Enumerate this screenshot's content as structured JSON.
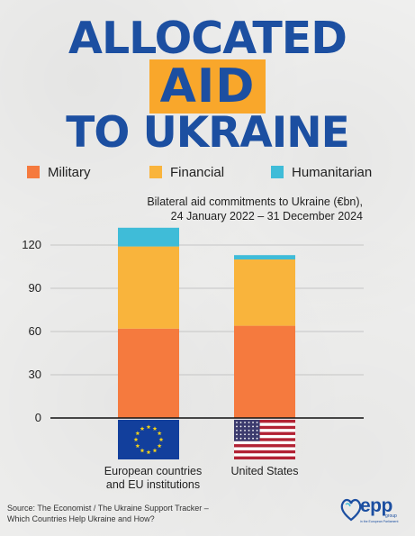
{
  "header": {
    "line1": "ALLOCATED",
    "line2": "AID",
    "line3": "TO UKRAINE"
  },
  "colors": {
    "title_blue": "#1c4fa1",
    "highlight": "#f9a72b",
    "military": "#f57a3e",
    "financial": "#f9b43c",
    "humanitarian": "#3fbcd8"
  },
  "legend": {
    "items": [
      {
        "label": "Military",
        "color": "#f57a3e"
      },
      {
        "label": "Financial",
        "color": "#f9b43c"
      },
      {
        "label": "Humanitarian",
        "color": "#3fbcd8"
      }
    ]
  },
  "subtitle": {
    "line1": "Bilateral aid commitments to Ukraine (€bn),",
    "line2": "24 January 2022 – 31 December 2024"
  },
  "chart_data": {
    "type": "bar",
    "stacked": true,
    "categories": [
      "European countries and EU institutions",
      "United States"
    ],
    "category_lines": [
      [
        "European countries",
        "and EU institutions"
      ],
      [
        "United States"
      ]
    ],
    "category_icons": [
      "eu-flag-icon",
      "us-flag-icon"
    ],
    "series": [
      {
        "name": "Military",
        "values": [
          62,
          64
        ]
      },
      {
        "name": "Financial",
        "values": [
          57,
          46
        ]
      },
      {
        "name": "Humanitarian",
        "values": [
          13,
          3
        ]
      }
    ],
    "yticks": [
      0,
      30,
      60,
      90,
      120
    ],
    "ylim": [
      0,
      132
    ],
    "grid": true,
    "legend": "top"
  },
  "footer": {
    "source_line1": "Source: The Economist / The Ukraine Support Tracker –",
    "source_line2": "Which Countries Help Ukraine and How?",
    "logo_text": "epp",
    "logo_sub": "group",
    "logo_tag": "in the European Parliament"
  }
}
